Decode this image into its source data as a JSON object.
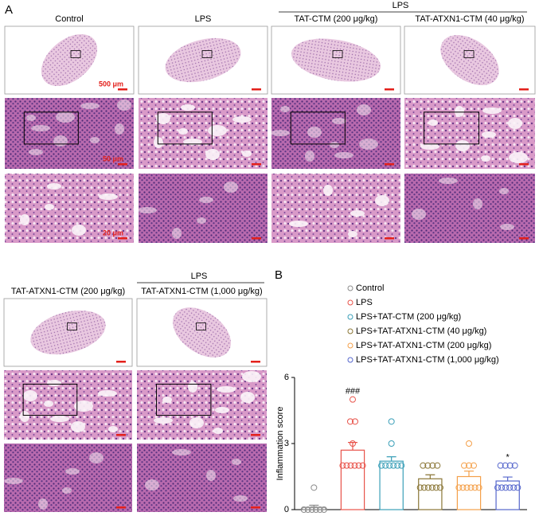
{
  "panel_a": {
    "label": "A",
    "group_label": "LPS",
    "columns": [
      "Control",
      "LPS",
      "TAT-CTM (200 μg/kg)",
      "TAT-ATXN1-CTM (40 μg/kg)"
    ],
    "scale_labels": [
      "500 μm",
      "50 μm",
      "20 μm"
    ]
  },
  "panel_a_lower": {
    "group_label": "LPS",
    "columns": [
      "TAT-ATXN1-CTM (200 μg/kg)",
      "TAT-ATXN1-CTM (1,000 μg/kg)"
    ]
  },
  "chart_data": {
    "type": "bar",
    "label": "B",
    "y_label": "Inflammation score",
    "ylim": [
      0,
      6
    ],
    "yticks": [
      0,
      3,
      6
    ],
    "series": [
      {
        "name": "Control",
        "color": "#8c8c8c",
        "value": 0.1,
        "error": 0.1,
        "points": [
          0,
          0,
          0,
          0,
          0,
          0,
          1
        ]
      },
      {
        "name": "LPS",
        "color": "#e8534a",
        "value": 2.7,
        "error": 0.35,
        "annotation": "###",
        "points": [
          5,
          4,
          4,
          3,
          2,
          2,
          2,
          2,
          2,
          2
        ]
      },
      {
        "name": "LPS+TAT-CTM (200 μg/kg)",
        "color": "#3a9fb8",
        "value": 2.2,
        "error": 0.2,
        "points": [
          4,
          3,
          2,
          2,
          2,
          2,
          2,
          2
        ]
      },
      {
        "name": "LPS+TAT-ATXN1-CTM (40 μg/kg)",
        "color": "#8a7636",
        "value": 1.4,
        "error": 0.18,
        "points": [
          2,
          2,
          2,
          2,
          1,
          1,
          1,
          1,
          1,
          1
        ]
      },
      {
        "name": "LPS+TAT-ATXN1-CTM (200 μg/kg)",
        "color": "#f4a04a",
        "value": 1.5,
        "error": 0.25,
        "points": [
          3,
          2,
          2,
          2,
          1,
          1,
          1,
          1,
          1,
          1
        ]
      },
      {
        "name": "LPS+TAT-ATXN1-CTM (1,000 μg/kg)",
        "color": "#5566cc",
        "value": 1.3,
        "error": 0.18,
        "annotation": "*",
        "points": [
          2,
          2,
          2,
          2,
          1,
          1,
          1,
          1,
          1,
          1
        ]
      }
    ]
  }
}
